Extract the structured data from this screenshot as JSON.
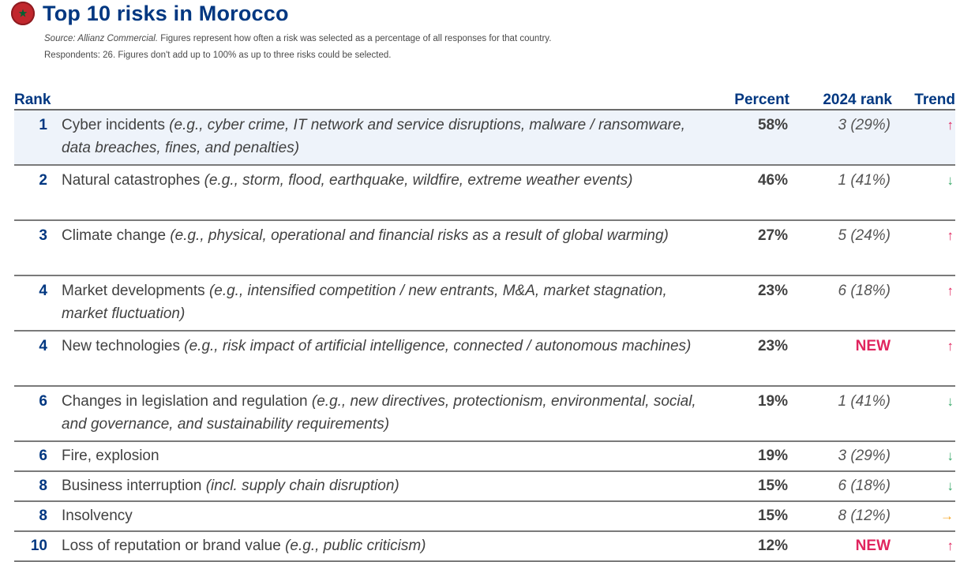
{
  "header": {
    "title": "Top 10 risks in Morocco",
    "source_label": "Source: Allianz Commercial.",
    "source_rest": " Figures represent how often a risk was selected as a percentage of all responses for that country.",
    "respondents": "Respondents: 26. Figures don't add up to 100% as up to three risks could be selected."
  },
  "columns": {
    "rank": "Rank",
    "percent": "Percent",
    "prev_rank": "2024 rank",
    "trend": "Trend"
  },
  "colors": {
    "brand": "#003781",
    "up": "#e0245e",
    "down": "#3aaa6a",
    "flat": "#f5a623",
    "highlight": "#eef3fa"
  },
  "rows": [
    {
      "rank": "1",
      "name": "Cyber incidents",
      "examples": "(e.g., cyber crime, IT network and service disruptions, malware / ransomware, data breaches, fines, and penalties)",
      "percent": "58%",
      "prev": "3 (29%)",
      "trend": "↑",
      "trend_dir": "up"
    },
    {
      "rank": "2",
      "name": "Natural catastrophes",
      "examples": "(e.g., storm, flood, earthquake, wildfire, extreme weather events)",
      "percent": "46%",
      "prev": "1 (41%)",
      "trend": "↓",
      "trend_dir": "down"
    },
    {
      "rank": "3",
      "name": "Climate change",
      "examples": "(e.g., physical, operational and financial risks as a result of global warming)",
      "percent": "27%",
      "prev": "5 (24%)",
      "trend": "↑",
      "trend_dir": "up"
    },
    {
      "rank": "4",
      "name": "Market developments",
      "examples": "(e.g., intensified competition / new entrants, M&A, market stagnation, market fluctuation)",
      "percent": "23%",
      "prev": "6 (18%)",
      "trend": "↑",
      "trend_dir": "up"
    },
    {
      "rank": "4",
      "name": "New technologies",
      "examples": "(e.g., risk impact of artificial intelligence, connected / autonomous machines)",
      "percent": "23%",
      "prev": "NEW",
      "trend": "↑",
      "trend_dir": "up"
    },
    {
      "rank": "6",
      "name": "Changes in legislation and regulation",
      "examples": "(e.g., new directives, protectionism, environmental, social, and governance, and sustainability requirements)",
      "percent": "19%",
      "prev": "1 (41%)",
      "trend": "↓",
      "trend_dir": "down"
    },
    {
      "rank": "6",
      "name": "Fire, explosion",
      "examples": "",
      "percent": "19%",
      "prev": "3 (29%)",
      "trend": "↓",
      "trend_dir": "down"
    },
    {
      "rank": "8",
      "name": "Business interruption",
      "examples": "(incl. supply chain disruption)",
      "percent": "15%",
      "prev": "6 (18%)",
      "trend": "↓",
      "trend_dir": "down"
    },
    {
      "rank": "8",
      "name": "Insolvency",
      "examples": "",
      "percent": "15%",
      "prev": "8 (12%)",
      "trend": "→",
      "trend_dir": "flat"
    },
    {
      "rank": "10",
      "name": "Loss of reputation or brand value",
      "examples": "(e.g., public criticism)",
      "percent": "12%",
      "prev": "NEW",
      "trend": "↑",
      "trend_dir": "up"
    }
  ]
}
